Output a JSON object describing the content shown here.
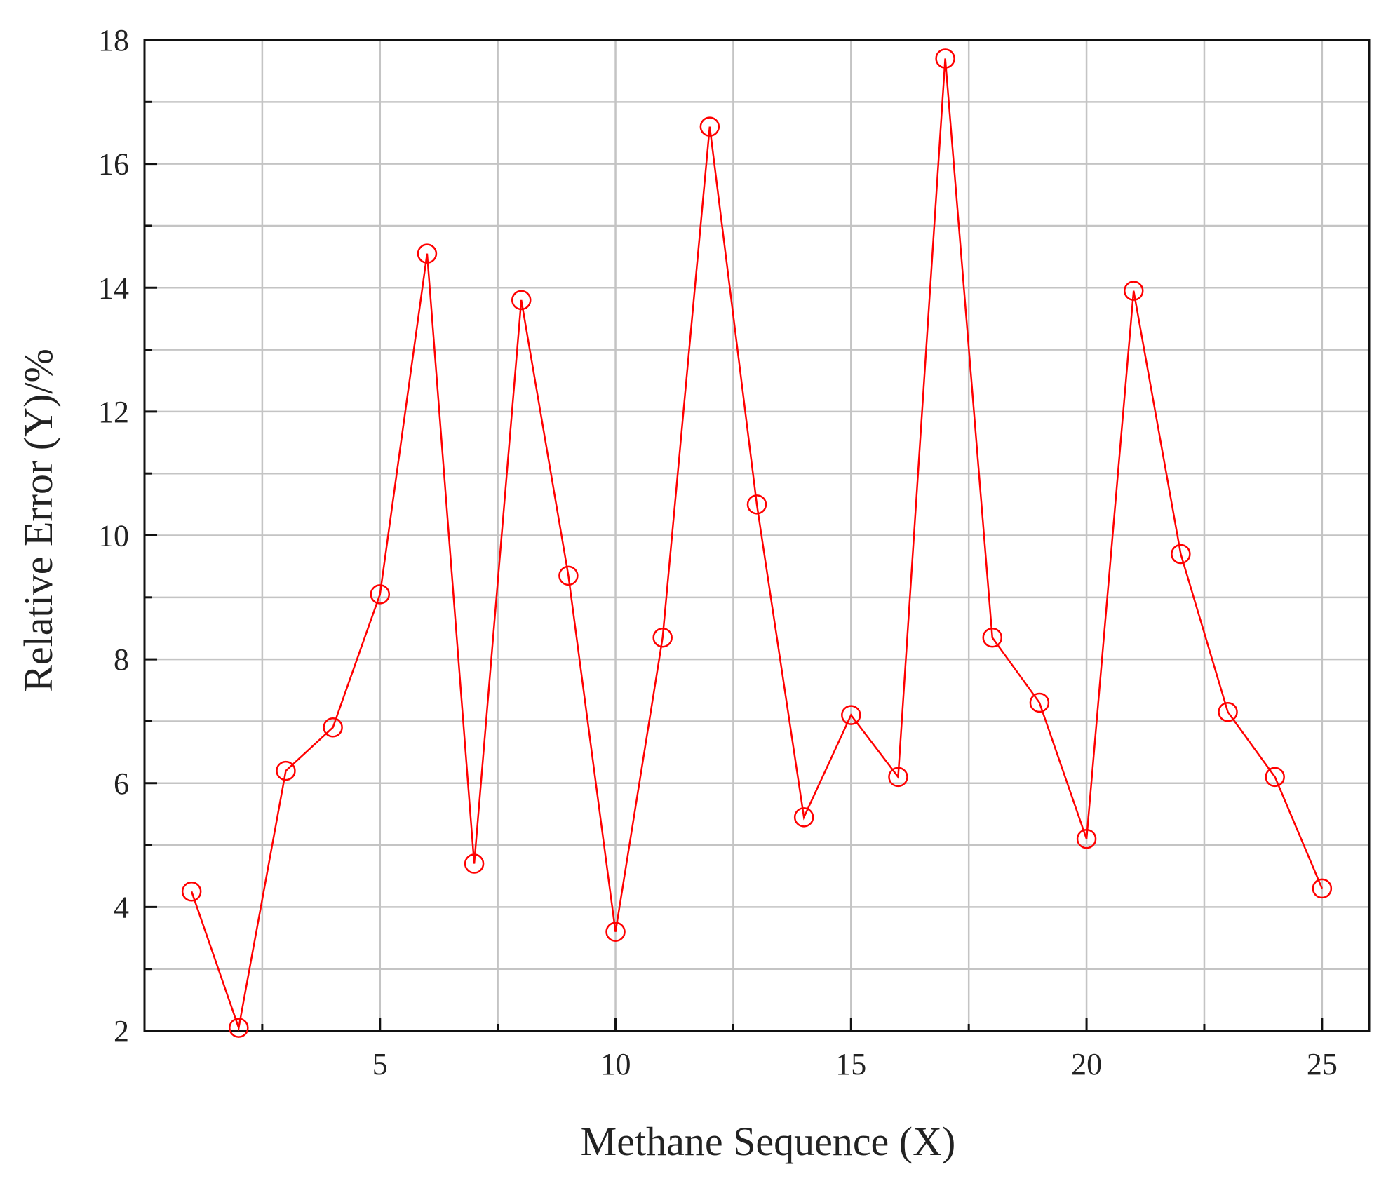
{
  "chart_data": {
    "type": "line",
    "title": "",
    "xlabel": "Methane Sequence (X)",
    "ylabel": "Relative Error (Y)/%",
    "xlim": [
      0,
      26
    ],
    "ylim": [
      2,
      18
    ],
    "x_ticks": [
      5,
      10,
      15,
      20,
      25
    ],
    "y_ticks": [
      2,
      4,
      6,
      8,
      10,
      12,
      14,
      16,
      18
    ],
    "grid": true,
    "legend": "none",
    "colors": {
      "series": "#ff0000",
      "grid": "#c4c4c4",
      "axis": "#111111"
    },
    "series": [
      {
        "marker": "circle",
        "x": [
          1,
          2,
          3,
          4,
          5,
          6,
          7,
          8,
          9,
          10,
          11,
          12,
          13,
          14,
          15,
          16,
          17,
          18,
          19,
          20,
          21,
          22,
          23,
          24,
          25
        ],
        "y": [
          4.25,
          2.05,
          6.2,
          6.9,
          9.05,
          14.55,
          4.7,
          13.8,
          9.35,
          3.6,
          8.35,
          16.6,
          10.5,
          5.45,
          7.1,
          6.1,
          17.7,
          8.35,
          7.3,
          5.1,
          13.95,
          9.7,
          7.15,
          6.1,
          4.3
        ]
      }
    ]
  }
}
